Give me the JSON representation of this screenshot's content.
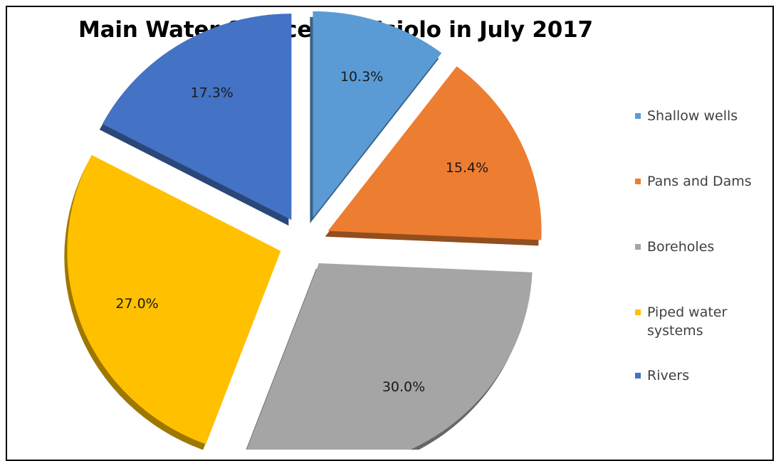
{
  "chart_data": {
    "type": "pie",
    "title": "Main Water Sources for Isiolo in July 2017",
    "slices": [
      {
        "name": "Shallow wells",
        "value": 10.3,
        "label": "10.3%",
        "color": "#5b9bd5"
      },
      {
        "name": "Pans and Dams",
        "value": 15.4,
        "label": "15.4%",
        "color": "#ed7d31"
      },
      {
        "name": "Boreholes",
        "value": 30.0,
        "label": "30.0%",
        "color": "#a5a5a5"
      },
      {
        "name": "Piped water systems",
        "value": 27.0,
        "label": "27.0%",
        "color": "#ffc000"
      },
      {
        "name": "Rivers",
        "value": 17.3,
        "label": "17.3%",
        "color": "#4472c4"
      }
    ],
    "exploded": true,
    "three_d": true,
    "legend_position": "right"
  }
}
